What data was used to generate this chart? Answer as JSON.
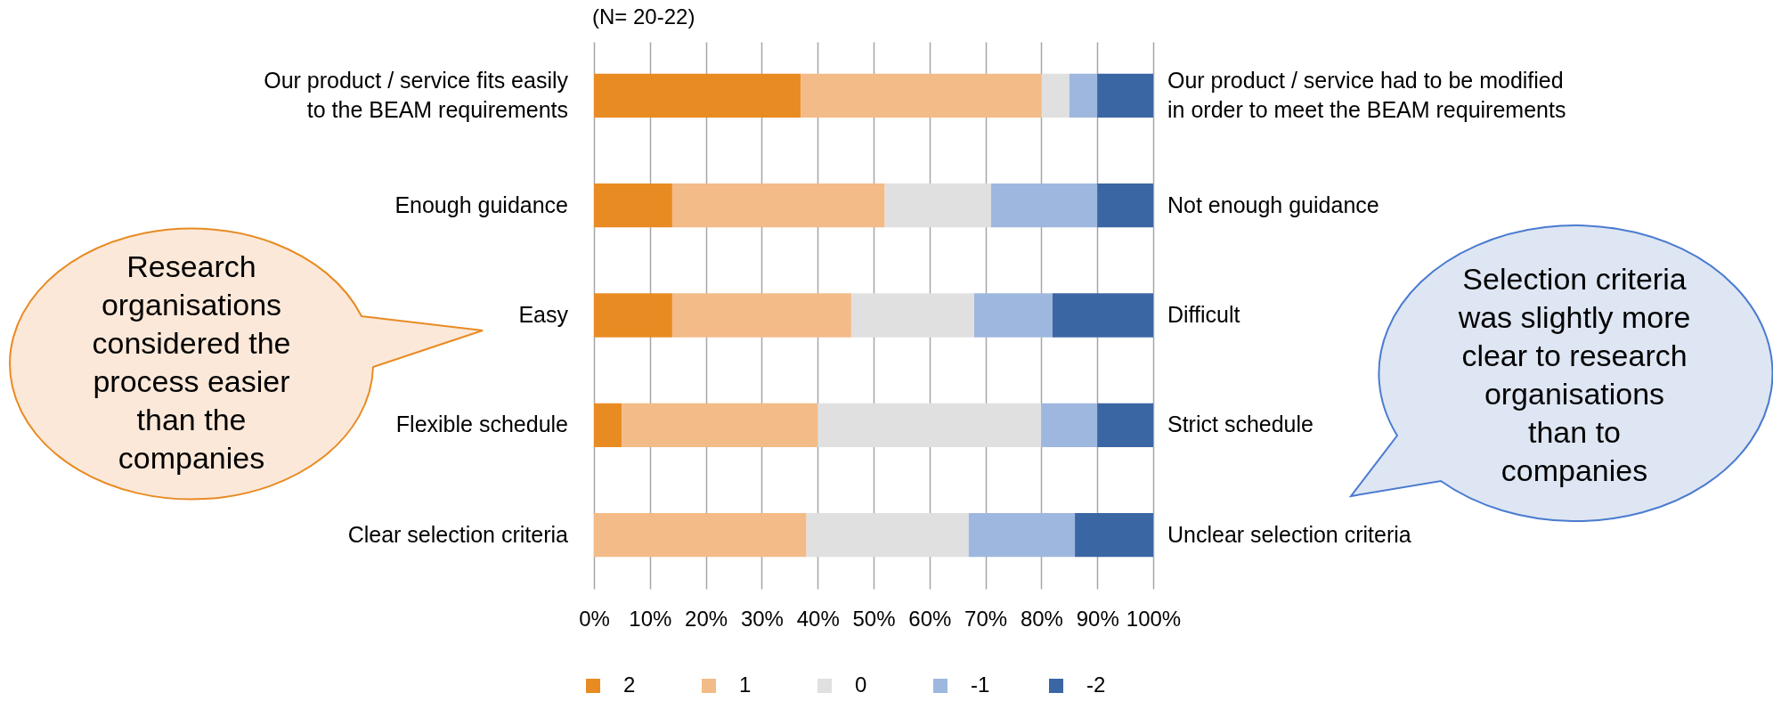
{
  "chart_data": {
    "type": "bar",
    "orientation": "horizontal",
    "stacked": true,
    "subtitle": "(N= 20-22)",
    "categories": [
      "Our product / service fits easily\nto the BEAM requirements",
      "Enough guidance",
      "Easy",
      "Flexible schedule",
      "Clear selection criteria"
    ],
    "y2_categories": [
      "Our product / service had to be modified\nin order to meet the BEAM requirements",
      "Not enough guidance",
      "Difficult",
      "Strict schedule",
      "Unclear selection criteria"
    ],
    "series": [
      {
        "name": "2",
        "color": "#e98b23",
        "values": [
          37,
          14,
          14,
          5,
          0
        ]
      },
      {
        "name": "1",
        "color": "#f3bb87",
        "values": [
          43,
          38,
          32,
          35,
          38
        ]
      },
      {
        "name": "0",
        "color": "#e0e0e0",
        "values": [
          5,
          19,
          22,
          40,
          29
        ]
      },
      {
        "name": "-1",
        "color": "#9eb7df",
        "values": [
          5,
          19,
          14,
          10,
          19
        ]
      },
      {
        "name": "-2",
        "color": "#3a66a3",
        "values": [
          10,
          10,
          18,
          10,
          14
        ]
      }
    ],
    "xlim": [
      0,
      100
    ],
    "xticks": [
      {
        "value": 0,
        "label": "0%"
      },
      {
        "value": 10,
        "label": "10%"
      },
      {
        "value": 20,
        "label": "20%"
      },
      {
        "value": 30,
        "label": "30%"
      },
      {
        "value": 40,
        "label": "40%"
      },
      {
        "value": 50,
        "label": "50%"
      },
      {
        "value": 60,
        "label": "60%"
      },
      {
        "value": 70,
        "label": "70%"
      },
      {
        "value": 80,
        "label": "80%"
      },
      {
        "value": 90,
        "label": "90%"
      },
      {
        "value": 100,
        "label": "100%"
      }
    ],
    "grid": "x",
    "legend": "bottom",
    "annotations": [
      "Research\norganisations\nconsidered the\nprocess easier\nthan the\ncompanies",
      "Selection criteria\nwas slightly more\nclear to research\norganisations\nthan to\ncompanies"
    ]
  }
}
